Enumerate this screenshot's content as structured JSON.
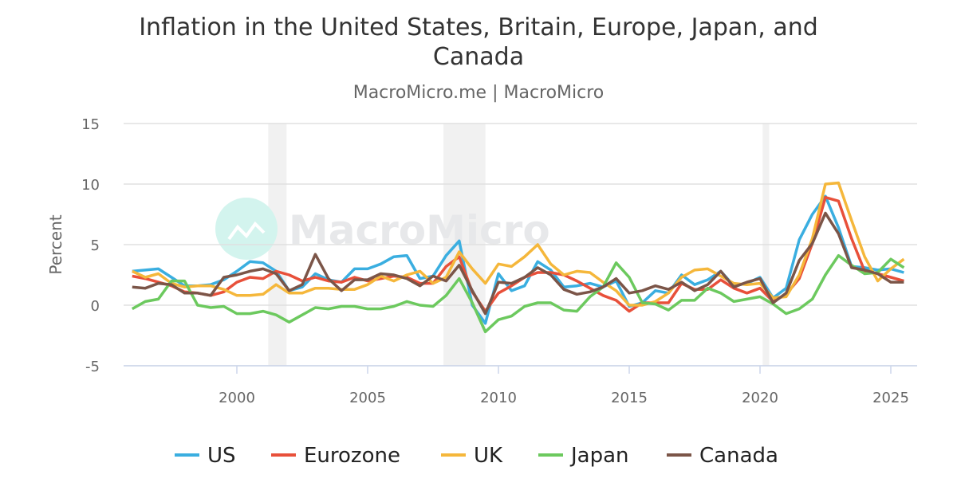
{
  "chart_data": {
    "type": "line",
    "title_line1": "Inflation in the United States, Britain, Europe, Japan, and",
    "title_line2": "Canada",
    "subtitle": "MacroMicro.me | MacroMicro",
    "watermark": "MacroMicro",
    "xlabel": "",
    "ylabel": "Percent",
    "xlim": [
      1996,
      2026
    ],
    "ylim": [
      -5,
      15
    ],
    "yticks": [
      "15",
      "10",
      "5",
      "0",
      "-5"
    ],
    "xticks": [
      "2000",
      "2005",
      "2010",
      "2015",
      "2020",
      "2025"
    ],
    "grid": true,
    "legend_position": "bottom",
    "recessions": [
      [
        2001.2,
        2001.9
      ],
      [
        2007.9,
        2009.5
      ],
      [
        2020.1,
        2020.35
      ]
    ],
    "x": [
      1996,
      1996.5,
      1997,
      1997.5,
      1998,
      1998.5,
      1999,
      1999.5,
      2000,
      2000.5,
      2001,
      2001.5,
      2002,
      2002.5,
      2003,
      2003.5,
      2004,
      2004.5,
      2005,
      2005.5,
      2006,
      2006.5,
      2007,
      2007.5,
      2008,
      2008.5,
      2009,
      2009.5,
      2010,
      2010.5,
      2011,
      2011.5,
      2012,
      2012.5,
      2013,
      2013.5,
      2014,
      2014.5,
      2015,
      2015.5,
      2016,
      2016.5,
      2017,
      2017.5,
      2018,
      2018.5,
      2019,
      2019.5,
      2020,
      2020.5,
      2021,
      2021.5,
      2022,
      2022.5,
      2023,
      2023.5,
      2024,
      2024.5,
      2025,
      2025.5
    ],
    "series": [
      {
        "name": "US",
        "color": "#3aaee0",
        "values": [
          2.8,
          2.9,
          3.0,
          2.3,
          1.6,
          1.6,
          1.7,
          2.1,
          2.8,
          3.6,
          3.5,
          2.8,
          1.2,
          1.5,
          2.6,
          2.1,
          1.9,
          3.0,
          3.0,
          3.4,
          4.0,
          4.1,
          2.2,
          2.4,
          4.1,
          5.3,
          0.0,
          -1.5,
          2.6,
          1.2,
          1.6,
          3.6,
          2.9,
          1.5,
          1.6,
          1.8,
          1.5,
          2.0,
          -0.1,
          0.2,
          1.2,
          1.0,
          2.5,
          1.7,
          2.1,
          2.8,
          1.6,
          1.8,
          2.3,
          0.6,
          1.4,
          5.4,
          7.5,
          9.0,
          6.4,
          3.2,
          3.1,
          2.9,
          3.0,
          2.7
        ]
      },
      {
        "name": "Eurozone",
        "color": "#e8503a",
        "values": [
          2.4,
          2.2,
          1.9,
          1.6,
          1.1,
          1.0,
          0.8,
          1.1,
          1.9,
          2.3,
          2.2,
          2.8,
          2.5,
          2.0,
          2.3,
          2.0,
          1.9,
          2.3,
          2.0,
          2.2,
          2.4,
          2.3,
          1.8,
          1.8,
          3.2,
          4.0,
          1.1,
          -0.5,
          1.0,
          1.6,
          2.3,
          2.7,
          2.7,
          2.5,
          2.0,
          1.4,
          0.8,
          0.4,
          -0.5,
          0.2,
          0.2,
          0.2,
          1.8,
          1.3,
          1.3,
          2.1,
          1.4,
          1.0,
          1.4,
          0.3,
          0.9,
          2.2,
          5.1,
          8.9,
          8.6,
          5.5,
          2.8,
          2.6,
          2.3,
          2.0
        ]
      },
      {
        "name": "UK",
        "color": "#f5b73b",
        "values": [
          2.8,
          2.3,
          2.6,
          1.8,
          1.5,
          1.6,
          1.6,
          1.3,
          0.8,
          0.8,
          0.9,
          1.7,
          1.0,
          1.0,
          1.4,
          1.4,
          1.3,
          1.3,
          1.7,
          2.4,
          2.0,
          2.5,
          2.8,
          1.8,
          2.3,
          4.4,
          3.0,
          1.8,
          3.4,
          3.2,
          4.0,
          5.0,
          3.4,
          2.5,
          2.8,
          2.7,
          1.9,
          1.2,
          0.0,
          0.0,
          0.3,
          1.0,
          2.3,
          2.9,
          3.0,
          2.4,
          1.8,
          1.7,
          1.8,
          0.6,
          0.7,
          2.5,
          5.5,
          10.0,
          10.1,
          7.0,
          4.0,
          2.0,
          3.0,
          3.8
        ]
      },
      {
        "name": "Japan",
        "color": "#6cc95e",
        "values": [
          -0.3,
          0.3,
          0.5,
          2.0,
          2.0,
          0.0,
          -0.2,
          -0.1,
          -0.7,
          -0.7,
          -0.5,
          -0.8,
          -1.4,
          -0.8,
          -0.2,
          -0.3,
          -0.1,
          -0.1,
          -0.3,
          -0.3,
          -0.1,
          0.3,
          0.0,
          -0.1,
          0.8,
          2.2,
          0.2,
          -2.2,
          -1.2,
          -0.9,
          -0.1,
          0.2,
          0.2,
          -0.4,
          -0.5,
          0.7,
          1.5,
          3.5,
          2.3,
          0.2,
          0.1,
          -0.4,
          0.4,
          0.4,
          1.4,
          1.0,
          0.3,
          0.5,
          0.7,
          0.1,
          -0.7,
          -0.3,
          0.5,
          2.5,
          4.1,
          3.3,
          2.6,
          2.7,
          3.8,
          3.1
        ]
      },
      {
        "name": "Canada",
        "color": "#7b5548",
        "values": [
          1.5,
          1.4,
          1.8,
          1.7,
          1.0,
          1.0,
          0.8,
          2.3,
          2.5,
          2.8,
          3.0,
          2.6,
          1.2,
          1.7,
          4.2,
          2.2,
          1.2,
          2.1,
          2.1,
          2.6,
          2.5,
          2.2,
          1.6,
          2.4,
          2.0,
          3.3,
          1.2,
          -0.7,
          1.9,
          1.8,
          2.3,
          3.1,
          2.5,
          1.3,
          0.9,
          1.1,
          1.5,
          2.2,
          1.0,
          1.2,
          1.6,
          1.3,
          1.9,
          1.2,
          1.7,
          2.8,
          1.5,
          1.9,
          2.2,
          0.2,
          1.0,
          3.7,
          5.1,
          7.6,
          5.9,
          3.1,
          2.9,
          2.6,
          1.9,
          1.9
        ]
      }
    ]
  }
}
